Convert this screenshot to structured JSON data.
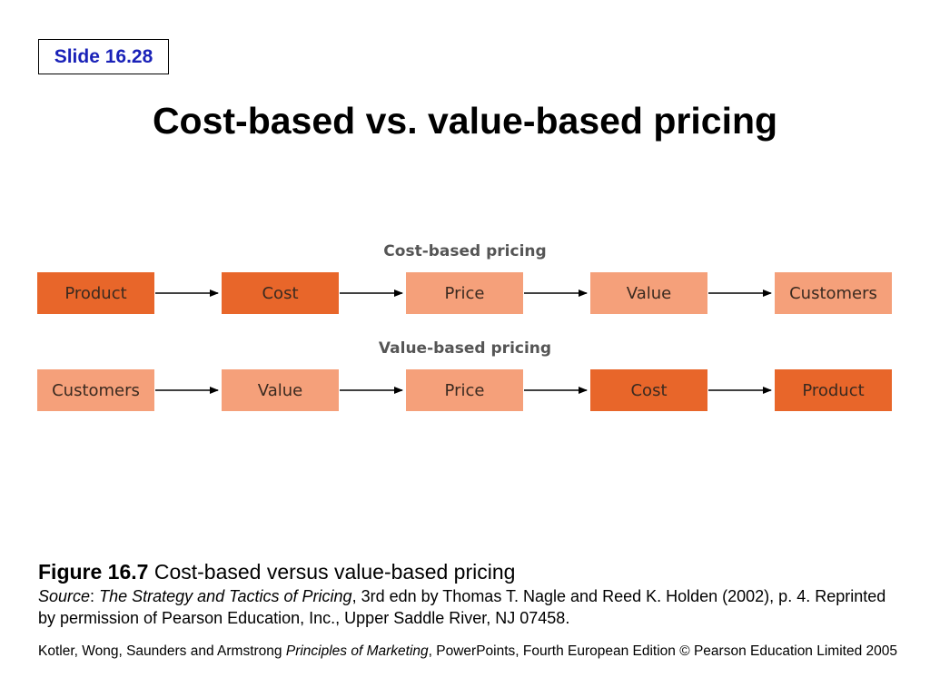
{
  "slide_label": "Slide 16.28",
  "title": "Cost-based vs. value-based pricing",
  "diagram": {
    "rows": [
      {
        "heading": "Cost-based pricing",
        "steps": [
          {
            "label": "Product",
            "shade": "dark"
          },
          {
            "label": "Cost",
            "shade": "dark"
          },
          {
            "label": "Price",
            "shade": "light"
          },
          {
            "label": "Value",
            "shade": "light"
          },
          {
            "label": "Customers",
            "shade": "light"
          }
        ]
      },
      {
        "heading": "Value-based pricing",
        "steps": [
          {
            "label": "Customers",
            "shade": "light"
          },
          {
            "label": "Value",
            "shade": "light"
          },
          {
            "label": "Price",
            "shade": "light"
          },
          {
            "label": "Cost",
            "shade": "dark"
          },
          {
            "label": "Product",
            "shade": "dark"
          }
        ]
      }
    ],
    "colors": {
      "dark_box": "#e8662a",
      "light_box": "#f5a07a",
      "arrow": "#000000",
      "heading": "#555555",
      "slide_label": "#1a22b8"
    }
  },
  "caption": {
    "figure_label": "Figure 16.7",
    "figure_title": "Cost-based versus value-based pricing",
    "source_label": "Source",
    "source_sep": ":",
    "source_work": "The Strategy and Tactics of Pricing",
    "source_text": ", 3rd edn by Thomas T. Nagle and Reed K. Holden (2002), p. 4. Reprinted by permission of Pearson Education, Inc., Upper Saddle River, NJ 07458."
  },
  "footer": {
    "authors": "Kotler, Wong, Saunders and Armstrong",
    "book": "Principles of Marketing",
    "edition": ", PowerPoints, Fourth European Edition © Pearson Education Limited 2005"
  }
}
